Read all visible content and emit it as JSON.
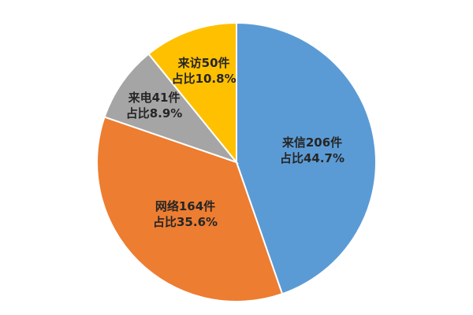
{
  "chart_data": {
    "type": "pie",
    "slices": [
      {
        "category": "来信",
        "count": 206,
        "count_text": "206件",
        "percent": 44.7,
        "percent_text": "占比44.7%",
        "color": "#5B9BD5"
      },
      {
        "category": "网络",
        "count": 164,
        "count_text": "164件",
        "percent": 35.6,
        "percent_text": "占比35.6%",
        "color": "#ED7D31"
      },
      {
        "category": "来电",
        "count": 41,
        "count_text": "41件",
        "percent": 8.9,
        "percent_text": "占比8.9%",
        "color": "#A5A5A5"
      },
      {
        "category": "来访",
        "count": 50,
        "count_text": "50件",
        "percent": 10.8,
        "percent_text": "占比10.8%",
        "color": "#FFC000"
      }
    ],
    "start_angle": "12 o'clock",
    "direction": "clockwise",
    "legend": "none",
    "labels": "inside-slices"
  }
}
